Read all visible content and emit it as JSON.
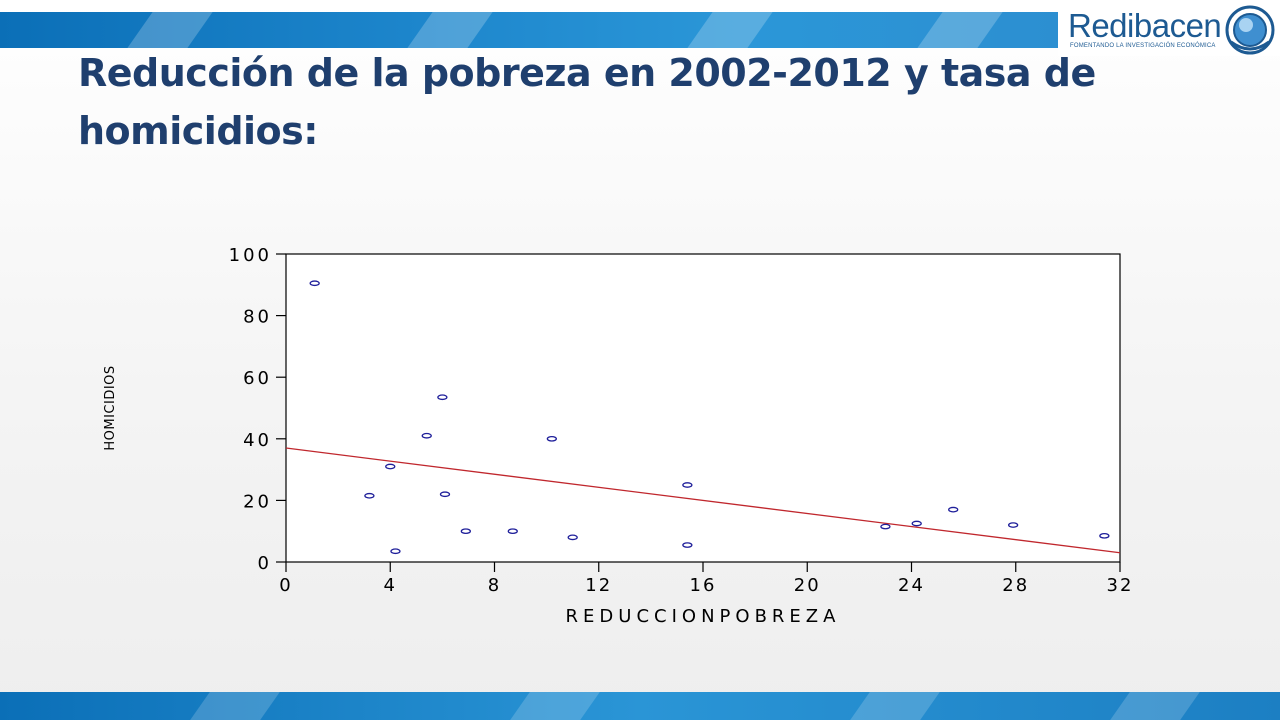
{
  "slide": {
    "title": "Reducción de la pobreza en 2002-2012 y tasa de homicidios:"
  },
  "logo": {
    "name": "Redibacen",
    "tagline": "FOMENTANDO LA INVESTIGACIÓN ECONÓMICA",
    "color": "#1d5a92"
  },
  "colors": {
    "title": "#1f3f6e",
    "band": "#1d86cc",
    "points": "#1f1f9a",
    "fit_line": "#c0272d"
  },
  "chart_data": {
    "type": "scatter",
    "title": "",
    "xlabel": "REDUCCIONPOBREZA",
    "ylabel": "HOMICIDIOS",
    "xlim": [
      0,
      32
    ],
    "ylim": [
      0,
      100
    ],
    "x_ticks": [
      0,
      4,
      8,
      12,
      16,
      20,
      24,
      28,
      32
    ],
    "y_ticks": [
      0,
      20,
      40,
      60,
      80,
      100
    ],
    "grid": false,
    "legend": "none",
    "series": [
      {
        "points": [
          [
            1.1,
            90.5
          ],
          [
            3.2,
            21.5
          ],
          [
            4.0,
            31.0
          ],
          [
            4.2,
            3.5
          ],
          [
            5.4,
            41.0
          ],
          [
            6.0,
            53.5
          ],
          [
            6.1,
            22.0
          ],
          [
            6.9,
            10.0
          ],
          [
            8.7,
            10.0
          ],
          [
            10.2,
            40.0
          ],
          [
            11.0,
            8.0
          ],
          [
            15.4,
            25.0
          ],
          [
            15.4,
            5.5
          ],
          [
            23.0,
            11.5
          ],
          [
            24.2,
            12.5
          ],
          [
            25.6,
            17.0
          ],
          [
            27.9,
            12.0
          ],
          [
            31.4,
            8.5
          ]
        ]
      }
    ],
    "fit_line": {
      "x": [
        0,
        32
      ],
      "y": [
        37,
        3
      ]
    }
  }
}
